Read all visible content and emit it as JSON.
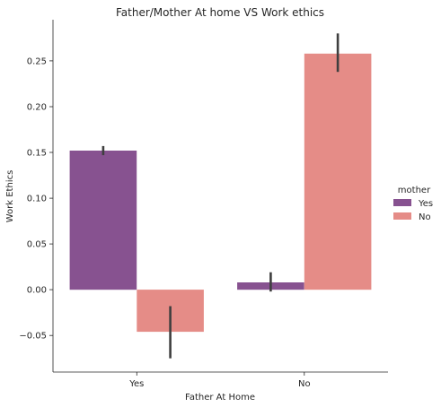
{
  "chart_data": {
    "type": "bar",
    "title": "Father/Mother At home VS Work ethics",
    "xlabel": "Father At Home",
    "ylabel": "Work Ethics",
    "categories": [
      "Yes",
      "No"
    ],
    "ylim": [
      -0.09,
      0.295
    ],
    "yticks": [
      -0.05,
      0.0,
      0.05,
      0.1,
      0.15,
      0.2,
      0.25
    ],
    "ytick_labels": [
      "−0.05",
      "0.00",
      "0.05",
      "0.10",
      "0.15",
      "0.20",
      "0.25"
    ],
    "grid": false,
    "legend": {
      "title": "mother",
      "placement": "right"
    },
    "series": [
      {
        "name": "Yes",
        "color": "#875290",
        "values": [
          0.152,
          0.008
        ],
        "error_low": [
          0.147,
          -0.002
        ],
        "error_high": [
          0.157,
          0.019
        ]
      },
      {
        "name": "No",
        "color": "#e58c87",
        "values": [
          -0.046,
          0.258
        ],
        "error_low": [
          -0.075,
          0.238
        ],
        "error_high": [
          -0.018,
          0.28
        ]
      }
    ],
    "error_bar_color": "#3f3f3f"
  }
}
